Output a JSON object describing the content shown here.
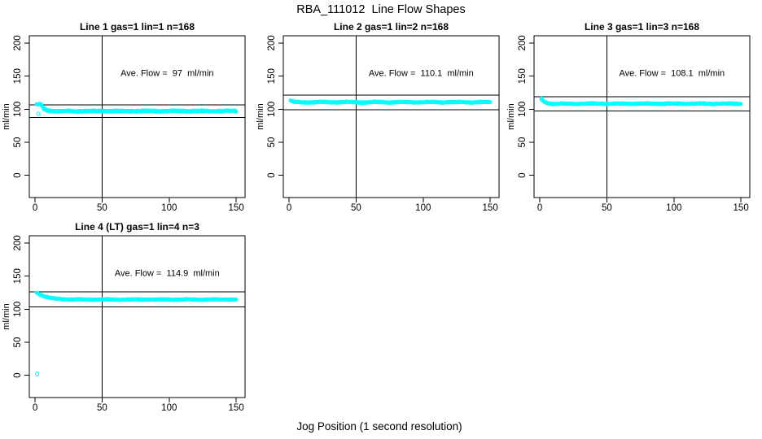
{
  "chart_data": {
    "type": "scatter",
    "title": "RBA_111012  Line Flow Shapes",
    "xlabel": "Jog Position (1 second resolution)",
    "ylabel": "ml/min",
    "point_color": "#00FFFF",
    "axis_color": "#000000",
    "grid": false,
    "legend": "none",
    "subplot_grid": [
      2,
      3
    ],
    "x_ticks": [
      0,
      50,
      100,
      150
    ],
    "y_ticks": [
      0,
      50,
      100,
      150,
      200
    ],
    "xlim": [
      -4.3,
      156.6
    ],
    "ylim": [
      -33.5,
      211
    ],
    "x_data_range": [
      1,
      150
    ],
    "annotation_anchor": {
      "x": 98.5,
      "y": 150
    },
    "subplots": [
      {
        "title": "Line 1 gas=1 lin=1 n=168",
        "gas": 1,
        "lin": 1,
        "n": 168,
        "ave_flow": 97,
        "annotation": "Ave. Flow =  97  ml/min",
        "ref_line_upper": 106.7,
        "ref_line_lower": 87.3,
        "vline_x": 50,
        "series_shape": {
          "x_start": 1,
          "x_end": 150,
          "n_points": 620,
          "start_y": 107.3,
          "settle_y": 97.2,
          "plateau_x": 4.5,
          "tau": 2.0,
          "jitter": 1.3,
          "wobble": 0.35,
          "seed": 7
        },
        "outliers": [
          [
            2.5,
            93
          ]
        ]
      },
      {
        "title": "Line 2 gas=1 lin=2 n=168",
        "gas": 1,
        "lin": 2,
        "n": 168,
        "ave_flow": 110.1,
        "annotation": "Ave. Flow =  110.1  ml/min",
        "ref_line_upper": 121.1,
        "ref_line_lower": 99.1,
        "vline_x": 50,
        "series_shape": {
          "x_start": 1,
          "x_end": 150,
          "n_points": 620,
          "start_y": 112.8,
          "settle_y": 110.6,
          "plateau_x": 1.0,
          "tau": 1.6,
          "jitter": 1.0,
          "wobble": 0.45,
          "seed": 13
        },
        "outliers": []
      },
      {
        "title": "Line 3 gas=1 lin=3 n=168",
        "gas": 1,
        "lin": 3,
        "n": 168,
        "ave_flow": 108.1,
        "annotation": "Ave. Flow =  108.1  ml/min",
        "ref_line_upper": 118.9,
        "ref_line_lower": 97.3,
        "vline_x": 50,
        "series_shape": {
          "x_start": 1,
          "x_end": 150,
          "n_points": 620,
          "start_y": 115.4,
          "settle_y": 108.3,
          "plateau_x": 1.5,
          "tau": 2.0,
          "jitter": 1.0,
          "wobble": 0.35,
          "seed": 21
        },
        "outliers": []
      },
      {
        "title": "Line 4 (LT) gas=1 lin=4 n=3",
        "gas": 1,
        "lin": 4,
        "n": 3,
        "ave_flow": 114.9,
        "annotation": "Ave. Flow =  114.9  ml/min",
        "ref_line_upper": 126.4,
        "ref_line_lower": 103.4,
        "vline_x": 50,
        "series_shape": {
          "x_start": 1,
          "x_end": 150,
          "n_points": 620,
          "start_y": 125.3,
          "settle_y": 114.6,
          "plateau_x": 1.5,
          "tau": 7.0,
          "jitter": 0.85,
          "wobble": 0.3,
          "seed": 29
        },
        "outliers": [
          [
            1.5,
            2
          ]
        ]
      }
    ]
  }
}
